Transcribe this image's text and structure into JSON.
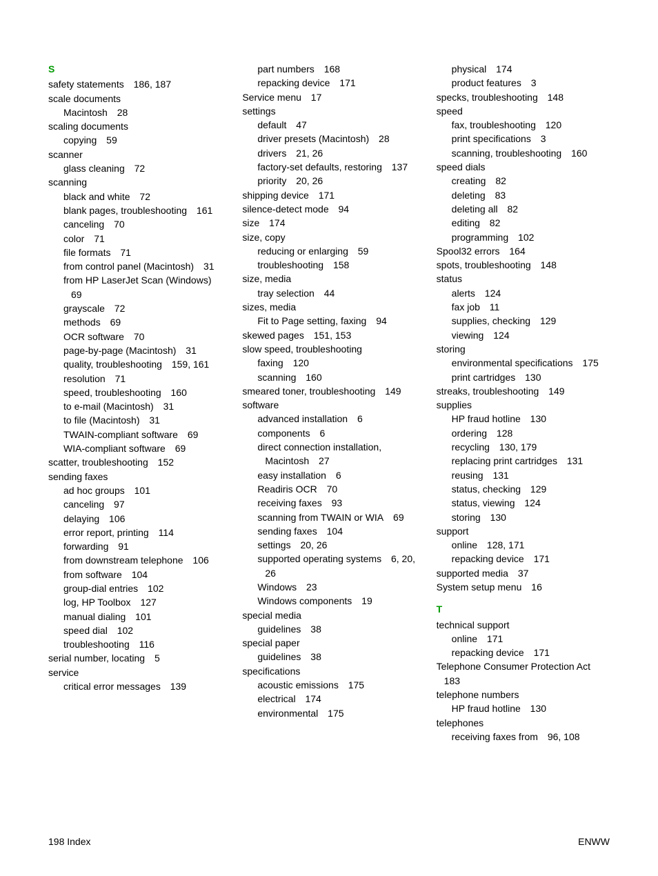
{
  "footer": {
    "left": "198   Index",
    "right": "ENWW"
  },
  "sections": {
    "S": "S",
    "T": "T"
  },
  "col1": [
    {
      "t": "letter",
      "v": "S"
    },
    {
      "t": "l0",
      "txt": "safety statements",
      "pg": "186,  187"
    },
    {
      "t": "l0",
      "txt": "scale documents"
    },
    {
      "t": "l1",
      "txt": "Macintosh",
      "pg": "28"
    },
    {
      "t": "l0",
      "txt": "scaling documents"
    },
    {
      "t": "l1",
      "txt": "copying",
      "pg": "59"
    },
    {
      "t": "l0",
      "txt": "scanner"
    },
    {
      "t": "l1",
      "txt": "glass cleaning",
      "pg": "72"
    },
    {
      "t": "l0",
      "txt": "scanning"
    },
    {
      "t": "l1",
      "txt": "black and white",
      "pg": "72"
    },
    {
      "t": "l1w",
      "txt": "blank pages, troubleshooting",
      "pg": "161"
    },
    {
      "t": "l1",
      "txt": "canceling",
      "pg": "70"
    },
    {
      "t": "l1",
      "txt": "color",
      "pg": "71"
    },
    {
      "t": "l1",
      "txt": "file formats",
      "pg": "71"
    },
    {
      "t": "l1w",
      "txt": "from control panel (Macintosh)",
      "pg": "31"
    },
    {
      "t": "l1w",
      "txt": "from HP LaserJet Scan (Windows)",
      "pg": "69"
    },
    {
      "t": "l1",
      "txt": "grayscale",
      "pg": "72"
    },
    {
      "t": "l1",
      "txt": "methods",
      "pg": "69"
    },
    {
      "t": "l1",
      "txt": "OCR software",
      "pg": "70"
    },
    {
      "t": "l1",
      "txt": "page-by-page (Macintosh)",
      "pg": "31"
    },
    {
      "t": "l1w",
      "txt": "quality, troubleshooting",
      "pg": "159, 161"
    },
    {
      "t": "l1",
      "txt": "resolution",
      "pg": "71"
    },
    {
      "t": "l1",
      "txt": "speed, troubleshooting",
      "pg": "160"
    },
    {
      "t": "l1",
      "txt": "to e-mail (Macintosh)",
      "pg": "31"
    },
    {
      "t": "l1",
      "txt": "to file (Macintosh)",
      "pg": "31"
    },
    {
      "t": "l1",
      "txt": "TWAIN-compliant software",
      "pg": "69"
    },
    {
      "t": "l1",
      "txt": "WIA-compliant software",
      "pg": "69"
    },
    {
      "t": "l0",
      "txt": "scatter, troubleshooting",
      "pg": "152"
    },
    {
      "t": "l0",
      "txt": "sending faxes"
    },
    {
      "t": "l1",
      "txt": "ad hoc groups",
      "pg": "101"
    },
    {
      "t": "l1",
      "txt": "canceling",
      "pg": "97"
    },
    {
      "t": "l1",
      "txt": "delaying",
      "pg": "106"
    },
    {
      "t": "l1",
      "txt": "error report, printing",
      "pg": "114"
    },
    {
      "t": "l1",
      "txt": "forwarding",
      "pg": "91"
    },
    {
      "t": "l1w",
      "txt": "from downstream telephone",
      "pg": "106"
    },
    {
      "t": "l1",
      "txt": "from software",
      "pg": "104"
    },
    {
      "t": "l1",
      "txt": "group-dial entries",
      "pg": "102"
    },
    {
      "t": "l1",
      "txt": "log, HP Toolbox",
      "pg": "127"
    },
    {
      "t": "l1",
      "txt": "manual dialing",
      "pg": "101"
    },
    {
      "t": "l1",
      "txt": "speed dial",
      "pg": "102"
    },
    {
      "t": "l1",
      "txt": "troubleshooting",
      "pg": "116"
    },
    {
      "t": "l0",
      "txt": "serial number, locating",
      "pg": "5"
    },
    {
      "t": "l0",
      "txt": "service"
    },
    {
      "t": "l1",
      "txt": "critical error messages",
      "pg": "139"
    }
  ],
  "col2": [
    {
      "t": "l1",
      "txt": "part numbers",
      "pg": "168"
    },
    {
      "t": "l1",
      "txt": "repacking device",
      "pg": "171"
    },
    {
      "t": "l0",
      "txt": "Service menu",
      "pg": "17"
    },
    {
      "t": "l0",
      "txt": "settings"
    },
    {
      "t": "l1",
      "txt": "default",
      "pg": "47"
    },
    {
      "t": "l1",
      "txt": "driver presets (Macintosh)",
      "pg": "28"
    },
    {
      "t": "l1",
      "txt": "drivers",
      "pg": "21,  26"
    },
    {
      "t": "l1w",
      "txt": "factory-set defaults, restoring",
      "pg": "137"
    },
    {
      "t": "l1",
      "txt": "priority",
      "pg": "20,  26"
    },
    {
      "t": "l0",
      "txt": "shipping device",
      "pg": "171"
    },
    {
      "t": "l0",
      "txt": "silence-detect mode",
      "pg": "94"
    },
    {
      "t": "l0",
      "txt": "size",
      "pg": "174"
    },
    {
      "t": "l0",
      "txt": "size, copy"
    },
    {
      "t": "l1",
      "txt": "reducing or enlarging",
      "pg": "59"
    },
    {
      "t": "l1",
      "txt": "troubleshooting",
      "pg": "158"
    },
    {
      "t": "l0",
      "txt": "size, media"
    },
    {
      "t": "l1",
      "txt": "tray selection",
      "pg": "44"
    },
    {
      "t": "l0",
      "txt": "sizes, media"
    },
    {
      "t": "l1",
      "txt": "Fit to Page setting, faxing",
      "pg": "94"
    },
    {
      "t": "l0",
      "txt": "skewed pages",
      "pg": "151,  153"
    },
    {
      "t": "l0",
      "txt": "slow speed, troubleshooting"
    },
    {
      "t": "l1",
      "txt": "faxing",
      "pg": "120"
    },
    {
      "t": "l1",
      "txt": "scanning",
      "pg": "160"
    },
    {
      "t": "l0w",
      "txt": "smeared toner, troubleshooting",
      "pg": "149"
    },
    {
      "t": "l0",
      "txt": "software"
    },
    {
      "t": "l1",
      "txt": "advanced installation",
      "pg": "6"
    },
    {
      "t": "l1",
      "txt": "components",
      "pg": "6"
    },
    {
      "t": "l1w",
      "txt": "direct connection installation, Macintosh",
      "pg": "27"
    },
    {
      "t": "l1",
      "txt": "easy installation",
      "pg": "6"
    },
    {
      "t": "l1",
      "txt": "Readiris OCR",
      "pg": "70"
    },
    {
      "t": "l1",
      "txt": "receiving faxes",
      "pg": "93"
    },
    {
      "t": "l1w",
      "txt": "scanning from TWAIN or WIA",
      "pg": "69"
    },
    {
      "t": "l1",
      "txt": "sending faxes",
      "pg": "104"
    },
    {
      "t": "l1",
      "txt": "settings",
      "pg": "20,  26"
    },
    {
      "t": "l1w",
      "txt": "supported operating systems",
      "pg": "6,  20,  26"
    },
    {
      "t": "l1",
      "txt": "Windows",
      "pg": "23"
    },
    {
      "t": "l1",
      "txt": "Windows components",
      "pg": "19"
    },
    {
      "t": "l0",
      "txt": "special media"
    },
    {
      "t": "l1",
      "txt": "guidelines",
      "pg": "38"
    },
    {
      "t": "l0",
      "txt": "special paper"
    },
    {
      "t": "l1",
      "txt": "guidelines",
      "pg": "38"
    },
    {
      "t": "l0",
      "txt": "specifications"
    },
    {
      "t": "l1",
      "txt": "acoustic emissions",
      "pg": "175"
    },
    {
      "t": "l1",
      "txt": "electrical",
      "pg": "174"
    },
    {
      "t": "l1",
      "txt": "environmental",
      "pg": "175"
    }
  ],
  "col3": [
    {
      "t": "l1",
      "txt": "physical",
      "pg": "174"
    },
    {
      "t": "l1",
      "txt": "product features",
      "pg": "3"
    },
    {
      "t": "l0",
      "txt": "specks, troubleshooting",
      "pg": "148"
    },
    {
      "t": "l0",
      "txt": "speed"
    },
    {
      "t": "l1",
      "txt": "fax, troubleshooting",
      "pg": "120"
    },
    {
      "t": "l1",
      "txt": "print specifications",
      "pg": "3"
    },
    {
      "t": "l1",
      "txt": "scanning, troubleshooting",
      "pg": "160"
    },
    {
      "t": "l0",
      "txt": "speed dials"
    },
    {
      "t": "l1",
      "txt": "creating",
      "pg": "82"
    },
    {
      "t": "l1",
      "txt": "deleting",
      "pg": "83"
    },
    {
      "t": "l1",
      "txt": "deleting all",
      "pg": "82"
    },
    {
      "t": "l1",
      "txt": "editing",
      "pg": "82"
    },
    {
      "t": "l1",
      "txt": "programming",
      "pg": "102"
    },
    {
      "t": "l0",
      "txt": "Spool32 errors",
      "pg": "164"
    },
    {
      "t": "l0",
      "txt": "spots, troubleshooting",
      "pg": "148"
    },
    {
      "t": "l0",
      "txt": "status"
    },
    {
      "t": "l1",
      "txt": "alerts",
      "pg": "124"
    },
    {
      "t": "l1",
      "txt": "fax job",
      "pg": "11"
    },
    {
      "t": "l1",
      "txt": "supplies, checking",
      "pg": "129"
    },
    {
      "t": "l1",
      "txt": "viewing",
      "pg": "124"
    },
    {
      "t": "l0",
      "txt": "storing"
    },
    {
      "t": "l1w",
      "txt": "environmental specifications",
      "pg": "175"
    },
    {
      "t": "l1",
      "txt": "print cartridges",
      "pg": "130"
    },
    {
      "t": "l0",
      "txt": "streaks, troubleshooting",
      "pg": "149"
    },
    {
      "t": "l0",
      "txt": "supplies"
    },
    {
      "t": "l1",
      "txt": "HP fraud hotline",
      "pg": "130"
    },
    {
      "t": "l1",
      "txt": "ordering",
      "pg": "128"
    },
    {
      "t": "l1",
      "txt": "recycling",
      "pg": "130,  179"
    },
    {
      "t": "l1",
      "txt": "replacing print cartridges",
      "pg": "131"
    },
    {
      "t": "l1",
      "txt": "reusing",
      "pg": "131"
    },
    {
      "t": "l1",
      "txt": "status, checking",
      "pg": "129"
    },
    {
      "t": "l1",
      "txt": "status, viewing",
      "pg": "124"
    },
    {
      "t": "l1",
      "txt": "storing",
      "pg": "130"
    },
    {
      "t": "l0",
      "txt": "support"
    },
    {
      "t": "l1",
      "txt": "online",
      "pg": "128,  171"
    },
    {
      "t": "l1",
      "txt": "repacking device",
      "pg": "171"
    },
    {
      "t": "l0",
      "txt": "supported media",
      "pg": "37"
    },
    {
      "t": "l0",
      "txt": "System setup menu",
      "pg": "16"
    },
    {
      "t": "spacer"
    },
    {
      "t": "letter",
      "v": "T"
    },
    {
      "t": "l0",
      "txt": "technical support"
    },
    {
      "t": "l1",
      "txt": "online",
      "pg": "171"
    },
    {
      "t": "l1",
      "txt": "repacking device",
      "pg": "171"
    },
    {
      "t": "l0w",
      "txt": "Telephone Consumer Protection Act",
      "pg": "183"
    },
    {
      "t": "l0",
      "txt": "telephone numbers"
    },
    {
      "t": "l1",
      "txt": "HP fraud hotline",
      "pg": "130"
    },
    {
      "t": "l0",
      "txt": "telephones"
    },
    {
      "t": "l1",
      "txt": "receiving faxes from",
      "pg": "96,  108"
    }
  ]
}
